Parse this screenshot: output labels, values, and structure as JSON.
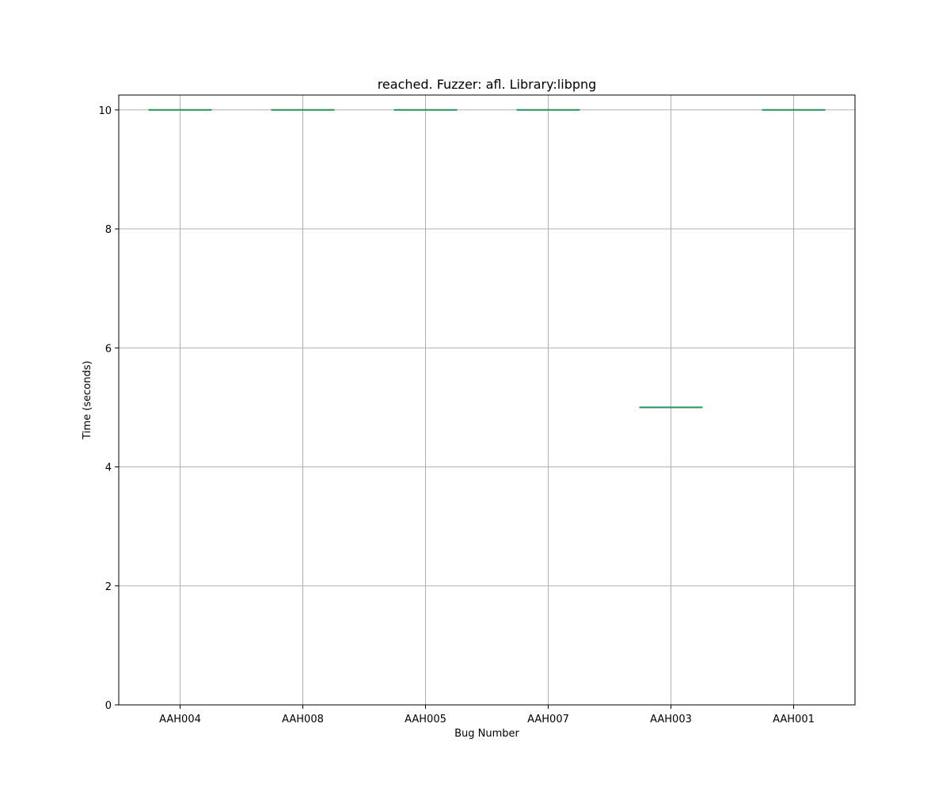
{
  "chart_data": {
    "type": "box",
    "title": "reached. Fuzzer: afl. Library:libpng",
    "xlabel": "Bug Number",
    "ylabel": "Time (seconds)",
    "categories": [
      "AAH004",
      "AAH008",
      "AAH005",
      "AAH007",
      "AAH003",
      "AAH001"
    ],
    "values": [
      10,
      10,
      10,
      10,
      5,
      10
    ],
    "ylim": [
      0,
      10.25
    ],
    "yticks": [
      "0",
      "2",
      "4",
      "6",
      "8",
      "10"
    ],
    "grid": true,
    "legend": "none"
  },
  "colors": {
    "box": "#1f77b4",
    "median": "#2ca02c",
    "grid": "#b0b0b0",
    "axes": "#000000"
  }
}
